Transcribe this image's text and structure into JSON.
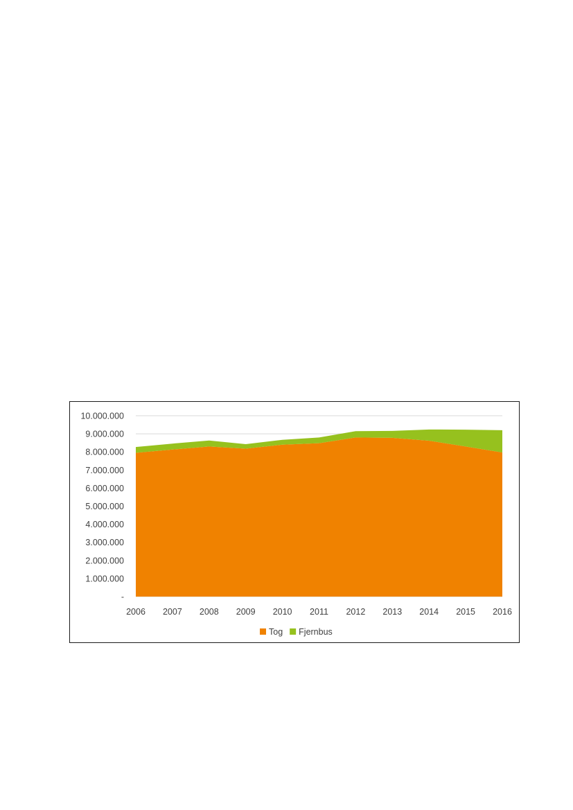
{
  "chart_data": {
    "type": "area",
    "stacked": true,
    "x": [
      "2006",
      "2007",
      "2008",
      "2009",
      "2010",
      "2011",
      "2012",
      "2013",
      "2014",
      "2015",
      "2016"
    ],
    "series": [
      {
        "name": "Tog",
        "color": "#f08200",
        "values": [
          7950000,
          8130000,
          8300000,
          8180000,
          8400000,
          8480000,
          8800000,
          8780000,
          8620000,
          8300000,
          7970000
        ]
      },
      {
        "name": "Fjernbus",
        "color": "#96c11e",
        "values": [
          320000,
          330000,
          330000,
          250000,
          270000,
          320000,
          350000,
          380000,
          620000,
          930000,
          1230000
        ]
      }
    ],
    "y_tick_labels": [
      "-",
      "1.000.000",
      "2.000.000",
      "3.000.000",
      "4.000.000",
      "5.000.000",
      "6.000.000",
      "7.000.000",
      "8.000.000",
      "9.000.000",
      "10.000.000"
    ],
    "ylim": [
      0,
      10000000
    ],
    "grid": true,
    "legend_position": "bottom",
    "title": "",
    "xlabel": "",
    "ylabel": ""
  }
}
